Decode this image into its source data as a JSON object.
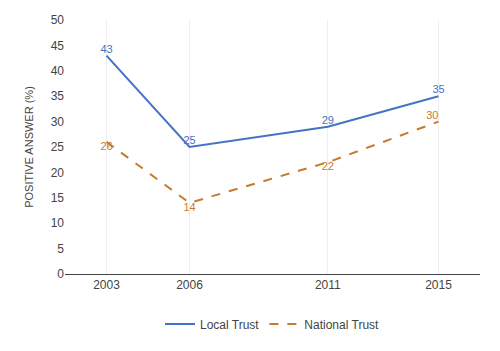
{
  "chart_data": {
    "type": "line",
    "x": [
      2003,
      2006,
      2011,
      2015
    ],
    "series": [
      {
        "name": "Local Trust",
        "color": "#4472C4",
        "line_style": "solid",
        "values": [
          43,
          25,
          29,
          35
        ]
      },
      {
        "name": "National Trust",
        "color": "#C47B2B",
        "line_style": "dashed",
        "values": [
          26,
          14,
          22,
          30
        ]
      }
    ],
    "ylabel": "POSITIVE ANSWER (%)",
    "xlim": [
      2001.5,
      2016.5
    ],
    "xticks": [
      2003,
      2006,
      2011,
      2015
    ],
    "ylim": [
      0,
      50
    ],
    "yticks": [
      0,
      5,
      10,
      15,
      20,
      25,
      30,
      35,
      40,
      45,
      50
    ],
    "grid": "x",
    "legend": "bottom",
    "data_labels": true
  }
}
